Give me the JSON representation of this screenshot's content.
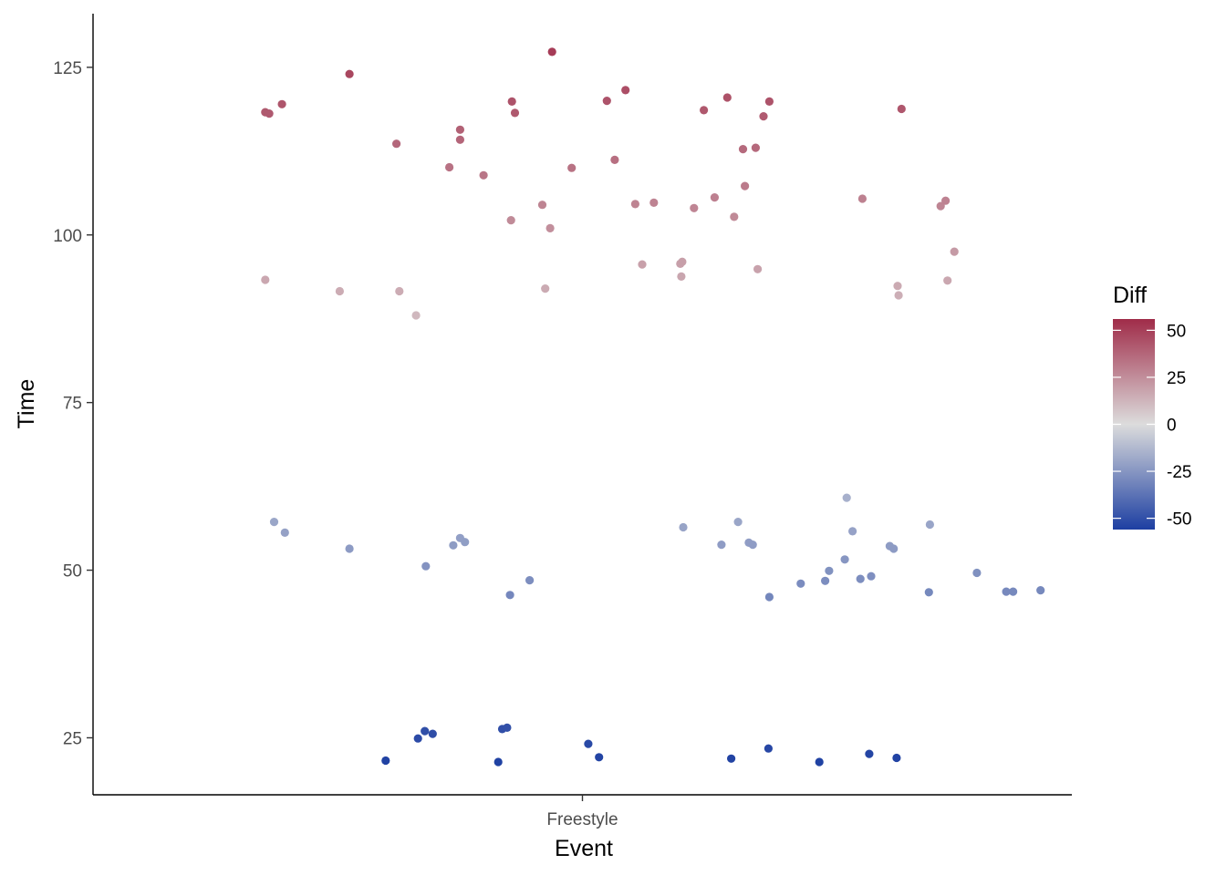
{
  "chart_data": {
    "type": "scatter",
    "title": "",
    "xlabel": "Event",
    "ylabel": "Time",
    "categories": [
      "Freestyle"
    ],
    "ylim": [
      16.5,
      133
    ],
    "yticks": [
      25,
      50,
      75,
      100,
      125
    ],
    "grid": false,
    "jitter": true,
    "legend": {
      "title": "Diff",
      "position": "right",
      "type": "gradient",
      "range": [
        -56,
        56
      ],
      "ticks": [
        50,
        25,
        0,
        -25,
        -50
      ],
      "tick_labels": [
        "50",
        "25",
        "0",
        "-25",
        "-50"
      ],
      "colors": {
        "low": "#1d3fa2",
        "mid": "#dcdcdc",
        "high": "#a02c49"
      }
    },
    "points": [
      {
        "x": 0.469,
        "y": 127.3
      },
      {
        "x": 0.262,
        "y": 124.0
      },
      {
        "x": 0.176,
        "y": 118.3
      },
      {
        "x": 0.18,
        "y": 118.1
      },
      {
        "x": 0.193,
        "y": 119.5
      },
      {
        "x": 0.31,
        "y": 113.6
      },
      {
        "x": 0.375,
        "y": 115.7
      },
      {
        "x": 0.375,
        "y": 114.2
      },
      {
        "x": 0.364,
        "y": 110.1
      },
      {
        "x": 0.399,
        "y": 108.9
      },
      {
        "x": 0.428,
        "y": 119.9
      },
      {
        "x": 0.431,
        "y": 118.2
      },
      {
        "x": 0.525,
        "y": 120.0
      },
      {
        "x": 0.544,
        "y": 121.6
      },
      {
        "x": 0.624,
        "y": 118.6
      },
      {
        "x": 0.648,
        "y": 120.5
      },
      {
        "x": 0.685,
        "y": 117.7
      },
      {
        "x": 0.691,
        "y": 119.9
      },
      {
        "x": 0.826,
        "y": 118.8
      },
      {
        "x": 0.533,
        "y": 111.2
      },
      {
        "x": 0.489,
        "y": 110.0
      },
      {
        "x": 0.459,
        "y": 104.5
      },
      {
        "x": 0.467,
        "y": 101.0
      },
      {
        "x": 0.427,
        "y": 102.2
      },
      {
        "x": 0.554,
        "y": 104.6
      },
      {
        "x": 0.573,
        "y": 104.8
      },
      {
        "x": 0.614,
        "y": 104.0
      },
      {
        "x": 0.635,
        "y": 105.6
      },
      {
        "x": 0.655,
        "y": 102.7
      },
      {
        "x": 0.664,
        "y": 112.8
      },
      {
        "x": 0.677,
        "y": 113.0
      },
      {
        "x": 0.666,
        "y": 107.3
      },
      {
        "x": 0.786,
        "y": 105.4
      },
      {
        "x": 0.866,
        "y": 104.3
      },
      {
        "x": 0.871,
        "y": 105.1
      },
      {
        "x": 0.176,
        "y": 93.3
      },
      {
        "x": 0.252,
        "y": 91.6
      },
      {
        "x": 0.313,
        "y": 91.6
      },
      {
        "x": 0.33,
        "y": 88.0
      },
      {
        "x": 0.462,
        "y": 92.0
      },
      {
        "x": 0.561,
        "y": 95.6
      },
      {
        "x": 0.6,
        "y": 95.7
      },
      {
        "x": 0.602,
        "y": 96.0
      },
      {
        "x": 0.601,
        "y": 93.8
      },
      {
        "x": 0.679,
        "y": 94.9
      },
      {
        "x": 0.822,
        "y": 92.4
      },
      {
        "x": 0.823,
        "y": 91.0
      },
      {
        "x": 0.873,
        "y": 93.2
      },
      {
        "x": 0.88,
        "y": 97.5
      },
      {
        "x": 0.185,
        "y": 57.2
      },
      {
        "x": 0.196,
        "y": 55.6
      },
      {
        "x": 0.262,
        "y": 53.2
      },
      {
        "x": 0.34,
        "y": 50.6
      },
      {
        "x": 0.368,
        "y": 53.7
      },
      {
        "x": 0.375,
        "y": 54.8
      },
      {
        "x": 0.38,
        "y": 54.2
      },
      {
        "x": 0.426,
        "y": 46.3
      },
      {
        "x": 0.446,
        "y": 48.5
      },
      {
        "x": 0.603,
        "y": 56.4
      },
      {
        "x": 0.642,
        "y": 53.8
      },
      {
        "x": 0.659,
        "y": 57.2
      },
      {
        "x": 0.67,
        "y": 54.1
      },
      {
        "x": 0.674,
        "y": 53.8
      },
      {
        "x": 0.691,
        "y": 46.0
      },
      {
        "x": 0.723,
        "y": 48.0
      },
      {
        "x": 0.748,
        "y": 48.4
      },
      {
        "x": 0.752,
        "y": 49.9
      },
      {
        "x": 0.768,
        "y": 51.6
      },
      {
        "x": 0.77,
        "y": 60.8
      },
      {
        "x": 0.776,
        "y": 55.8
      },
      {
        "x": 0.784,
        "y": 48.7
      },
      {
        "x": 0.795,
        "y": 49.1
      },
      {
        "x": 0.814,
        "y": 53.6
      },
      {
        "x": 0.818,
        "y": 53.2
      },
      {
        "x": 0.855,
        "y": 56.8
      },
      {
        "x": 0.854,
        "y": 46.7
      },
      {
        "x": 0.903,
        "y": 49.6
      },
      {
        "x": 0.933,
        "y": 46.8
      },
      {
        "x": 0.94,
        "y": 46.8
      },
      {
        "x": 0.968,
        "y": 47.0
      },
      {
        "x": 0.299,
        "y": 21.6
      },
      {
        "x": 0.332,
        "y": 24.9
      },
      {
        "x": 0.339,
        "y": 26.0
      },
      {
        "x": 0.347,
        "y": 25.6
      },
      {
        "x": 0.414,
        "y": 21.4
      },
      {
        "x": 0.418,
        "y": 26.3
      },
      {
        "x": 0.423,
        "y": 26.5
      },
      {
        "x": 0.506,
        "y": 24.1
      },
      {
        "x": 0.517,
        "y": 22.1
      },
      {
        "x": 0.652,
        "y": 21.9
      },
      {
        "x": 0.69,
        "y": 23.4
      },
      {
        "x": 0.742,
        "y": 21.4
      },
      {
        "x": 0.793,
        "y": 22.6
      },
      {
        "x": 0.821,
        "y": 22.0
      }
    ]
  }
}
